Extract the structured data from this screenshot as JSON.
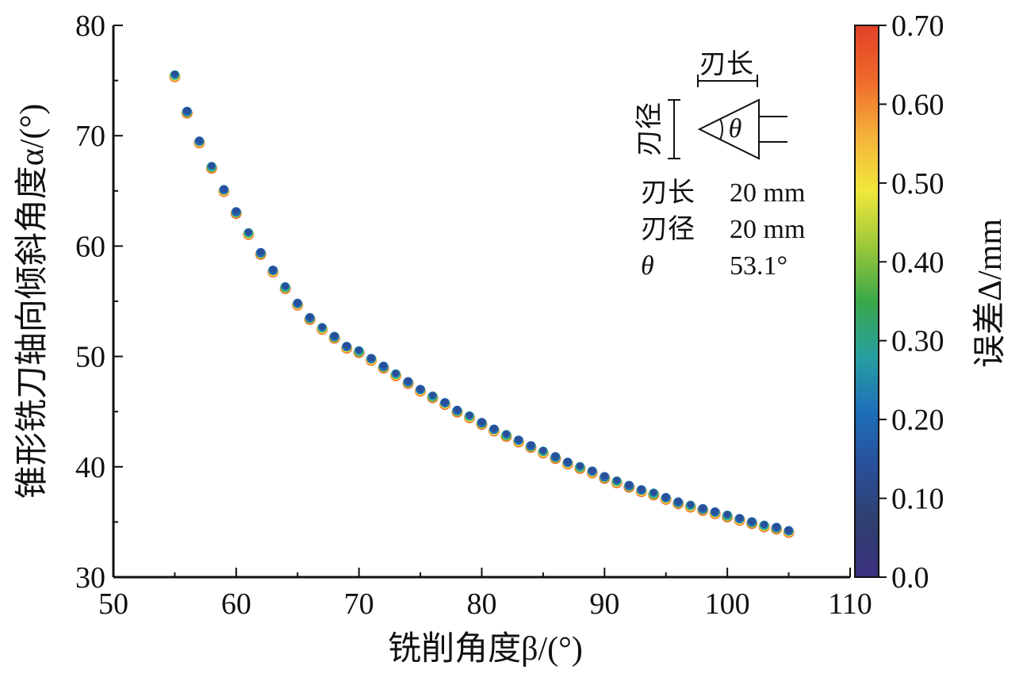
{
  "chart_data": {
    "type": "scatter",
    "xlabel": "铣削角度β/(°)",
    "ylabel": "锥形铣刀轴向倾斜角度α/(°)",
    "xlim": [
      50,
      110
    ],
    "ylim": [
      30,
      80
    ],
    "x_ticks": [
      "50",
      "60",
      "70",
      "80",
      "90",
      "100",
      "110"
    ],
    "y_ticks": [
      "30",
      "40",
      "50",
      "60",
      "70",
      "80"
    ],
    "colorbar": {
      "label": "误差Δ/mm",
      "range": [
        0.0,
        0.7
      ],
      "ticks": [
        "0.0",
        "0.10",
        "0.20",
        "0.30",
        "0.40",
        "0.50",
        "0.60",
        "0.70"
      ],
      "colors": [
        "#3a3080",
        "#2f3f6f",
        "#2a4f9a",
        "#1d6fb8",
        "#27a0a0",
        "#3aa84a",
        "#9cc83a",
        "#f0e83a",
        "#f5b23a",
        "#ef6a2a",
        "#e2412a"
      ]
    },
    "series": [
      {
        "x": [
          55,
          56,
          57,
          58,
          59,
          60,
          61,
          62,
          63,
          64,
          65,
          66,
          67,
          68,
          69,
          70,
          71,
          72,
          73,
          74,
          75,
          76,
          77,
          78,
          79,
          80,
          81,
          82,
          83,
          84,
          85,
          86,
          87,
          88,
          89,
          90,
          91,
          92,
          93,
          94,
          95,
          96,
          97,
          98,
          99,
          100,
          101,
          102,
          103,
          104,
          105
        ],
        "y": [
          75.5,
          72.2,
          69.5,
          67.2,
          65.1,
          63.1,
          61.2,
          59.4,
          57.8,
          56.3,
          54.8,
          53.5,
          52.6,
          51.8,
          50.9,
          50.5,
          49.8,
          49.1,
          48.4,
          47.7,
          47.0,
          46.4,
          45.8,
          45.1,
          44.6,
          44.0,
          43.4,
          42.9,
          42.4,
          41.9,
          41.4,
          40.9,
          40.4,
          40.0,
          39.6,
          39.1,
          38.7,
          38.3,
          37.9,
          37.6,
          37.2,
          36.8,
          36.5,
          36.2,
          35.9,
          35.6,
          35.3,
          35.0,
          34.7,
          34.5,
          34.2
        ]
      }
    ],
    "inset": {
      "diagram_labels": {
        "edge_length": "刃长",
        "edge_diameter": "刃径",
        "angle": "θ"
      },
      "params": [
        {
          "name": "刃长",
          "value": "20 mm"
        },
        {
          "name": "刃径",
          "value": "20 mm"
        },
        {
          "name": "θ",
          "value": "53.1°"
        }
      ]
    }
  }
}
